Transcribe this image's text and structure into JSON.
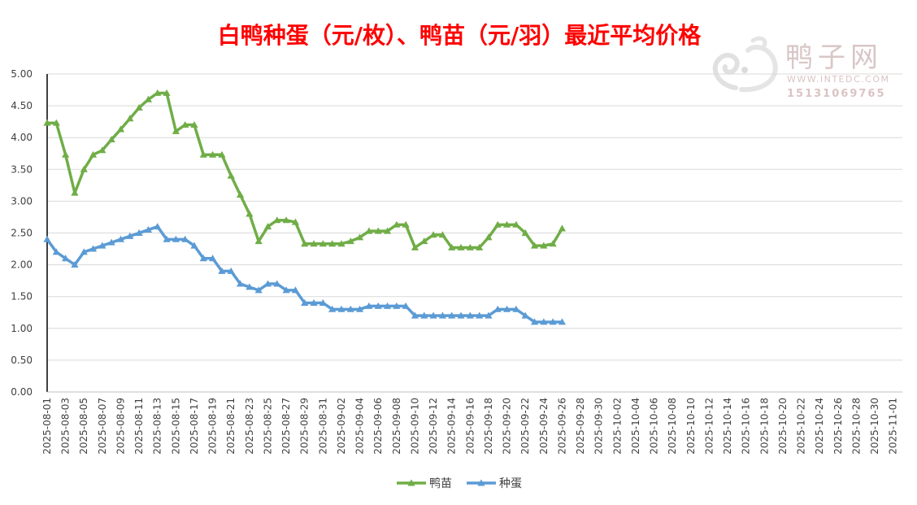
{
  "chart_data": {
    "type": "line",
    "title": "白鸭种蛋（元/枚）、鸭苗（元/羽）最近平均价格",
    "ylim": [
      0,
      5
    ],
    "yticks": [
      "0.00",
      "0.50",
      "1.00",
      "1.50",
      "2.00",
      "2.50",
      "3.00",
      "3.50",
      "4.00",
      "4.50",
      "5.00"
    ],
    "x_start": "2025-08-01",
    "x_end": "2025-11-02",
    "x_tick_labels": [
      "2025-08-01",
      "2025-08-03",
      "2025-08-05",
      "2025-08-07",
      "2025-08-09",
      "2025-08-11",
      "2025-08-13",
      "2025-08-15",
      "2025-08-17",
      "2025-08-19",
      "2025-08-21",
      "2025-08-23",
      "2025-08-25",
      "2025-08-27",
      "2025-08-29",
      "2025-08-31",
      "2025-09-02",
      "2025-09-04",
      "2025-09-06",
      "2025-09-08",
      "2025-09-10",
      "2025-09-12",
      "2025-09-14",
      "2025-09-16",
      "2025-09-18",
      "2025-09-20",
      "2025-09-22",
      "2025-09-24",
      "2025-09-26",
      "2025-09-28",
      "2025-09-30",
      "2025-10-02",
      "2025-10-04",
      "2025-10-06",
      "2025-10-08",
      "2025-10-10",
      "2025-10-12",
      "2025-10-14",
      "2025-10-16",
      "2025-10-18",
      "2025-10-20",
      "2025-10-22",
      "2025-10-24",
      "2025-10-26",
      "2025-10-28",
      "2025-10-30",
      "2025-11-01"
    ],
    "grid": true,
    "legend_position": "bottom",
    "series": [
      {
        "name": "鸭苗",
        "color": "#70ad47",
        "points": [
          [
            "2025-08-01",
            4.23
          ],
          [
            "2025-08-02",
            4.23
          ],
          [
            "2025-08-03",
            3.73
          ],
          [
            "2025-08-04",
            3.13
          ],
          [
            "2025-08-05",
            3.5
          ],
          [
            "2025-08-06",
            3.73
          ],
          [
            "2025-08-07",
            3.8
          ],
          [
            "2025-08-08",
            3.97
          ],
          [
            "2025-08-09",
            4.13
          ],
          [
            "2025-08-10",
            4.3
          ],
          [
            "2025-08-11",
            4.47
          ],
          [
            "2025-08-12",
            4.6
          ],
          [
            "2025-08-13",
            4.7
          ],
          [
            "2025-08-14",
            4.7
          ],
          [
            "2025-08-15",
            4.1
          ],
          [
            "2025-08-16",
            4.2
          ],
          [
            "2025-08-17",
            4.2
          ],
          [
            "2025-08-18",
            3.73
          ],
          [
            "2025-08-19",
            3.73
          ],
          [
            "2025-08-20",
            3.73
          ],
          [
            "2025-08-21",
            3.4
          ],
          [
            "2025-08-22",
            3.1
          ],
          [
            "2025-08-23",
            2.8
          ],
          [
            "2025-08-24",
            2.37
          ],
          [
            "2025-08-25",
            2.6
          ],
          [
            "2025-08-26",
            2.7
          ],
          [
            "2025-08-27",
            2.7
          ],
          [
            "2025-08-28",
            2.67
          ],
          [
            "2025-08-29",
            2.33
          ],
          [
            "2025-08-30",
            2.33
          ],
          [
            "2025-08-31",
            2.33
          ],
          [
            "2025-09-01",
            2.33
          ],
          [
            "2025-09-02",
            2.33
          ],
          [
            "2025-09-03",
            2.37
          ],
          [
            "2025-09-04",
            2.43
          ],
          [
            "2025-09-05",
            2.53
          ],
          [
            "2025-09-06",
            2.53
          ],
          [
            "2025-09-07",
            2.53
          ],
          [
            "2025-09-08",
            2.63
          ],
          [
            "2025-09-09",
            2.63
          ],
          [
            "2025-09-10",
            2.27
          ],
          [
            "2025-09-11",
            2.37
          ],
          [
            "2025-09-12",
            2.47
          ],
          [
            "2025-09-13",
            2.47
          ],
          [
            "2025-09-14",
            2.27
          ],
          [
            "2025-09-15",
            2.27
          ],
          [
            "2025-09-16",
            2.27
          ],
          [
            "2025-09-17",
            2.27
          ],
          [
            "2025-09-18",
            2.43
          ],
          [
            "2025-09-19",
            2.63
          ],
          [
            "2025-09-20",
            2.63
          ],
          [
            "2025-09-21",
            2.63
          ],
          [
            "2025-09-22",
            2.5
          ],
          [
            "2025-09-23",
            2.3
          ],
          [
            "2025-09-24",
            2.3
          ],
          [
            "2025-09-25",
            2.33
          ],
          [
            "2025-09-26",
            2.57
          ]
        ]
      },
      {
        "name": "种蛋",
        "color": "#5b9bd5",
        "points": [
          [
            "2025-08-01",
            2.4
          ],
          [
            "2025-08-02",
            2.2
          ],
          [
            "2025-08-03",
            2.1
          ],
          [
            "2025-08-04",
            2.0
          ],
          [
            "2025-08-05",
            2.2
          ],
          [
            "2025-08-06",
            2.25
          ],
          [
            "2025-08-07",
            2.3
          ],
          [
            "2025-08-08",
            2.35
          ],
          [
            "2025-08-09",
            2.4
          ],
          [
            "2025-08-10",
            2.45
          ],
          [
            "2025-08-11",
            2.5
          ],
          [
            "2025-08-12",
            2.55
          ],
          [
            "2025-08-13",
            2.6
          ],
          [
            "2025-08-14",
            2.4
          ],
          [
            "2025-08-15",
            2.4
          ],
          [
            "2025-08-16",
            2.4
          ],
          [
            "2025-08-17",
            2.3
          ],
          [
            "2025-08-18",
            2.1
          ],
          [
            "2025-08-19",
            2.1
          ],
          [
            "2025-08-20",
            1.9
          ],
          [
            "2025-08-21",
            1.9
          ],
          [
            "2025-08-22",
            1.7
          ],
          [
            "2025-08-23",
            1.65
          ],
          [
            "2025-08-24",
            1.6
          ],
          [
            "2025-08-25",
            1.7
          ],
          [
            "2025-08-26",
            1.7
          ],
          [
            "2025-08-27",
            1.6
          ],
          [
            "2025-08-28",
            1.6
          ],
          [
            "2025-08-29",
            1.4
          ],
          [
            "2025-08-30",
            1.4
          ],
          [
            "2025-08-31",
            1.4
          ],
          [
            "2025-09-01",
            1.3
          ],
          [
            "2025-09-02",
            1.3
          ],
          [
            "2025-09-03",
            1.3
          ],
          [
            "2025-09-04",
            1.3
          ],
          [
            "2025-09-05",
            1.35
          ],
          [
            "2025-09-06",
            1.35
          ],
          [
            "2025-09-07",
            1.35
          ],
          [
            "2025-09-08",
            1.35
          ],
          [
            "2025-09-09",
            1.35
          ],
          [
            "2025-09-10",
            1.2
          ],
          [
            "2025-09-11",
            1.2
          ],
          [
            "2025-09-12",
            1.2
          ],
          [
            "2025-09-13",
            1.2
          ],
          [
            "2025-09-14",
            1.2
          ],
          [
            "2025-09-15",
            1.2
          ],
          [
            "2025-09-16",
            1.2
          ],
          [
            "2025-09-17",
            1.2
          ],
          [
            "2025-09-18",
            1.2
          ],
          [
            "2025-09-19",
            1.3
          ],
          [
            "2025-09-20",
            1.3
          ],
          [
            "2025-09-21",
            1.3
          ],
          [
            "2025-09-22",
            1.2
          ],
          [
            "2025-09-23",
            1.1
          ],
          [
            "2025-09-24",
            1.1
          ],
          [
            "2025-09-25",
            1.1
          ],
          [
            "2025-09-26",
            1.1
          ]
        ]
      }
    ]
  },
  "watermark": {
    "brand": "鸭子网",
    "url": "WWW.INTEDC.COM",
    "phone": "15131069765",
    "logo_icon": "duck-swirl-logo"
  }
}
